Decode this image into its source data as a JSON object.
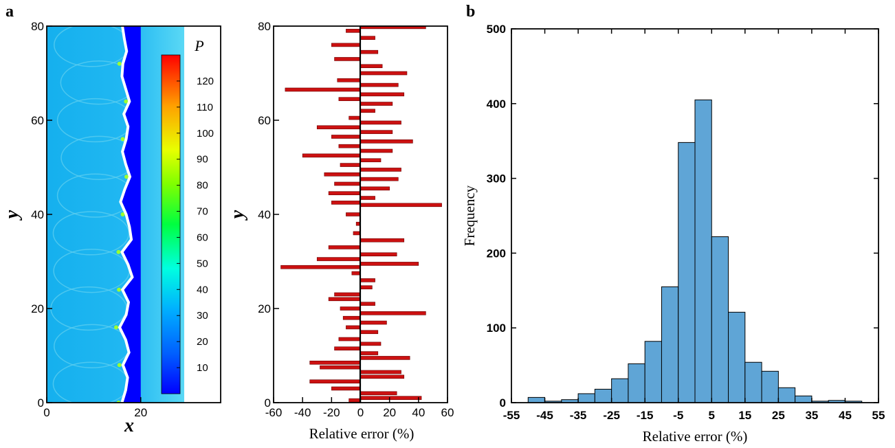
{
  "panel_labels": {
    "a": "a",
    "b": "b"
  },
  "chart_data": [
    {
      "type": "heatmap",
      "xlabel": "x",
      "ylabel": "y",
      "xlim": [
        0,
        37
      ],
      "ylim": [
        0,
        80
      ],
      "x_ticks": [
        0,
        20
      ],
      "y_ticks": [
        0,
        20,
        40,
        60,
        80
      ],
      "colorbar": {
        "title": "P",
        "min": 0,
        "max": 130,
        "ticks": [
          10,
          20,
          30,
          40,
          50,
          60,
          70,
          80,
          90,
          100,
          110,
          120
        ]
      },
      "front_x": [
        16.0,
        16.8,
        17.2,
        16.2,
        17.5,
        16.8,
        15.5,
        16.9,
        17.4,
        16.1,
        18.2,
        17.3,
        16.0,
        18.0,
        17.6,
        16.9,
        15.7,
        16.6,
        17.7,
        16.8,
        16.1,
        16.9,
        17.3,
        16.4,
        17.6,
        16.8,
        16.0,
        16.2,
        17.0,
        16.5,
        16.1
      ],
      "background_x_start": 17,
      "background_x_end": 20
    },
    {
      "type": "bar",
      "orientation": "horizontal",
      "xlabel": "Relative error (%)",
      "ylabel": "y",
      "xlim": [
        -60,
        60
      ],
      "ylim": [
        0,
        80
      ],
      "x_ticks": [
        -60,
        -40,
        -20,
        0,
        20,
        40,
        60
      ],
      "y_ticks": [
        0,
        20,
        40,
        60,
        80
      ],
      "y": [
        0.5,
        1.0,
        2.0,
        3.0,
        4.5,
        5.5,
        6.5,
        7.5,
        8.5,
        9.5,
        10.5,
        11.5,
        12.5,
        13.5,
        15.0,
        16.0,
        17.0,
        18.0,
        19.0,
        20.0,
        21.0,
        22.0,
        23.0,
        24.5,
        26.0,
        27.5,
        28.8,
        29.5,
        30.5,
        31.5,
        33.0,
        34.5,
        36.0,
        38.0,
        40.0,
        42.0,
        42.5,
        43.5,
        44.5,
        45.5,
        46.5,
        47.5,
        48.5,
        49.5,
        50.5,
        51.5,
        52.5,
        53.5,
        54.5,
        55.5,
        56.5,
        57.5,
        58.5,
        59.5,
        60.5,
        62.0,
        63.5,
        64.5,
        65.5,
        66.5,
        67.5,
        68.5,
        70.0,
        71.5,
        73.0,
        74.5,
        76.0,
        77.5,
        79.0,
        79.8
      ],
      "values": [
        -8,
        42,
        25,
        -20,
        -35,
        30,
        28,
        -28,
        -35,
        34,
        12,
        -18,
        14,
        -15,
        12,
        -10,
        18,
        -12,
        45,
        -14,
        10,
        -22,
        -18,
        8,
        10,
        -6,
        -55,
        40,
        -30,
        25,
        -22,
        30,
        -5,
        -3,
        -10,
        56,
        -20,
        10,
        -22,
        20,
        -18,
        26,
        -25,
        28,
        -14,
        14,
        -40,
        22,
        -15,
        36,
        -20,
        22,
        -30,
        28,
        -8,
        10,
        22,
        -15,
        30,
        -52,
        26,
        -16,
        32,
        15,
        -18,
        12,
        -20,
        10,
        -10,
        45
      ]
    },
    {
      "type": "bar",
      "xlabel": "Relative error (%)",
      "ylabel": "Frequency",
      "xlim": [
        -55,
        55
      ],
      "ylim": [
        0,
        500
      ],
      "x_ticks": [
        -55,
        -45,
        -35,
        -25,
        -15,
        -5,
        5,
        15,
        25,
        35,
        45,
        55
      ],
      "y_ticks": [
        0,
        100,
        200,
        300,
        400,
        500
      ],
      "bin_edges": [
        -50,
        -45,
        -40,
        -35,
        -30,
        -25,
        -20,
        -15,
        -10,
        -5,
        0,
        5,
        10,
        15,
        20,
        25,
        30,
        35,
        40,
        45,
        50
      ],
      "values": [
        7,
        2,
        4,
        12,
        18,
        32,
        52,
        82,
        155,
        348,
        405,
        222,
        121,
        54,
        42,
        20,
        9,
        2,
        3,
        2
      ],
      "bar_color": "#5fa5d6"
    }
  ]
}
